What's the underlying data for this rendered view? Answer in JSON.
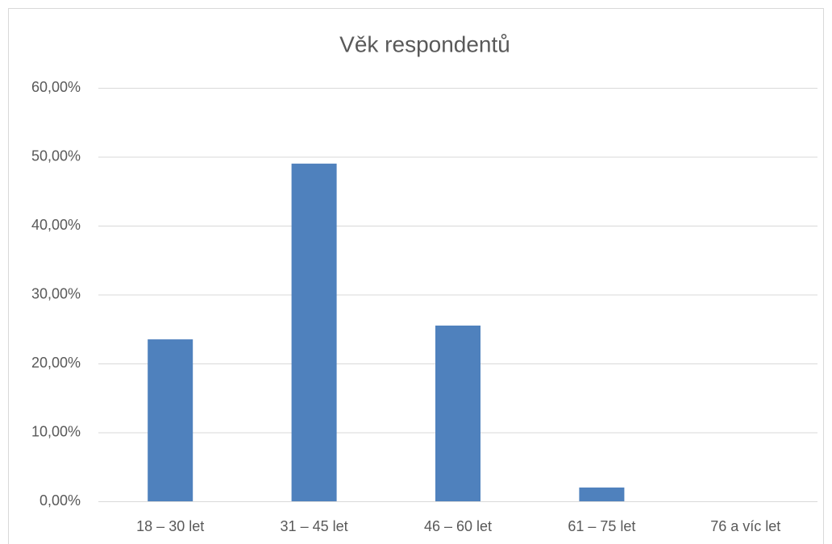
{
  "chart_data": {
    "type": "bar",
    "title": "Věk respondentů",
    "categories": [
      "18 – 30 let",
      "31 – 45 let",
      "46 – 60 let",
      "61 – 75 let",
      "76 a víc let"
    ],
    "values": [
      23.5,
      49,
      25.5,
      2,
      0
    ],
    "color": "#4f81bd",
    "ylim": [
      0,
      60
    ],
    "yticks": [
      {
        "value": 0,
        "label": "0,00%"
      },
      {
        "value": 10,
        "label": "10,00%"
      },
      {
        "value": 20,
        "label": "20,00%"
      },
      {
        "value": 30,
        "label": "30,00%"
      },
      {
        "value": 40,
        "label": "40,00%"
      },
      {
        "value": 50,
        "label": "50,00%"
      },
      {
        "value": 60,
        "label": "60,00%"
      }
    ],
    "grid": true
  }
}
